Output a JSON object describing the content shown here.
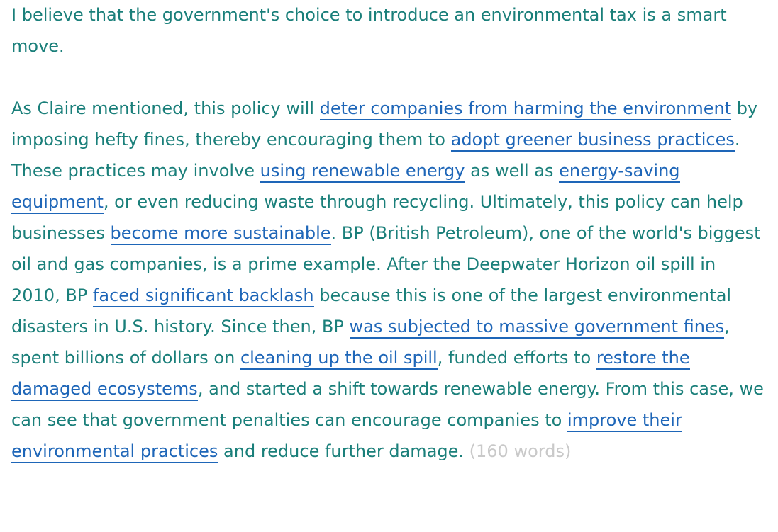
{
  "paragraph1": "I believe that the government's choice to introduce an environmental tax is a smart move.",
  "paragraph2": {
    "t01": "As Claire mentioned, this policy will ",
    "h01": "deter companies from harming the environment",
    "t02": " by imposing hefty fines, thereby encouraging them to ",
    "h02": "adopt greener business practices",
    "t03": ". These practices may involve ",
    "h03": "using renewable energy",
    "t04": " as well as ",
    "h04": "energy-saving equipment",
    "t05": ", or even reducing waste through recycling. Ultimately, this policy can help businesses ",
    "h05": "become more sustainable",
    "t06": ". BP (British Petroleum), one of the world's biggest oil and gas companies, is a prime example. After the Deepwater Horizon oil spill in 2010, BP ",
    "h06": "faced significant backlash",
    "t07": " because this is one of the largest environmental disasters in U.S. history. Since then, BP ",
    "h07": "was subjected to massive government fines",
    "t08": ", spent billions of dollars on ",
    "h08": "cleaning up the oil spill",
    "t09": ", funded efforts to ",
    "h09": "restore the damaged ecosystems",
    "t10": ", and started a shift towards renewable energy. From this case, we can see that government penalties can encourage companies to ",
    "h10": "improve their environmental practices",
    "t11": " and reduce further damage. ",
    "word_count": "(160 words)"
  },
  "colors": {
    "body_text": "#1a7f7a",
    "highlight": "#1e66b8",
    "word_count": "#c9c9c9"
  }
}
